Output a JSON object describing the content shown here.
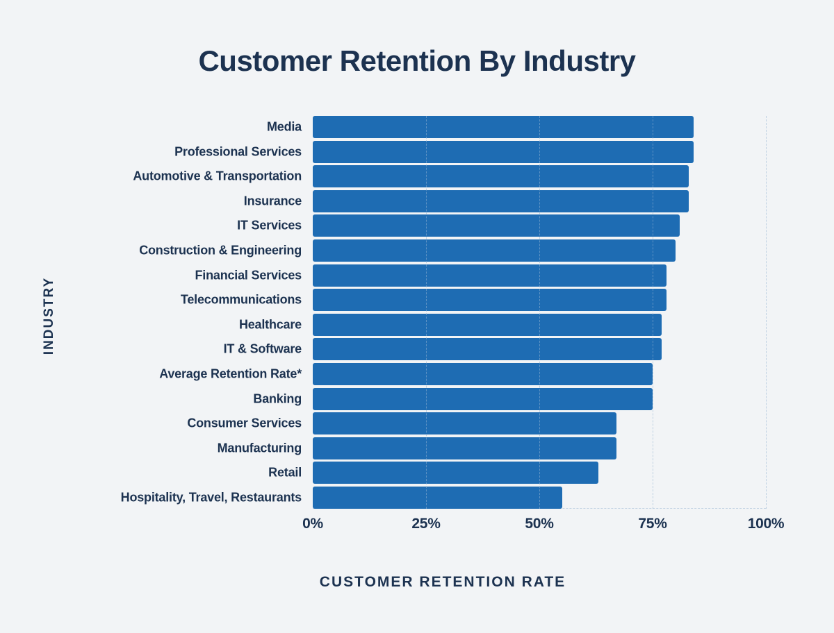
{
  "page": {
    "background": "#f2f4f6"
  },
  "chart_data": {
    "type": "bar",
    "orientation": "horizontal",
    "title": "Customer Retention By Industry",
    "xlabel": "CUSTOMER RETENTION RATE",
    "ylabel": "INDUSTRY",
    "categories": [
      "Media",
      "Professional Services",
      "Automotive & Transportation",
      "Insurance",
      "IT Services",
      "Construction & Engineering",
      "Financial Services",
      "Telecommunications",
      "Healthcare",
      "IT & Software",
      "Average Retention Rate*",
      "Banking",
      "Consumer Services",
      "Manufacturing",
      "Retail",
      "Hospitality, Travel, Restaurants"
    ],
    "values": [
      84,
      84,
      83,
      83,
      81,
      80,
      78,
      78,
      77,
      77,
      75,
      75,
      67,
      67,
      63,
      55
    ],
    "unit": "%",
    "xlim": [
      0,
      100
    ],
    "x_ticks": [
      "0%",
      "25%",
      "50%",
      "75%",
      "100%"
    ],
    "x_tick_values": [
      0,
      25,
      50,
      75,
      100
    ],
    "grid": true,
    "legend": false,
    "colors": {
      "bar": "#1e6cb3",
      "background": "#f2f4f6",
      "text": "#1c3250",
      "gridline": "#96b4d2"
    }
  }
}
